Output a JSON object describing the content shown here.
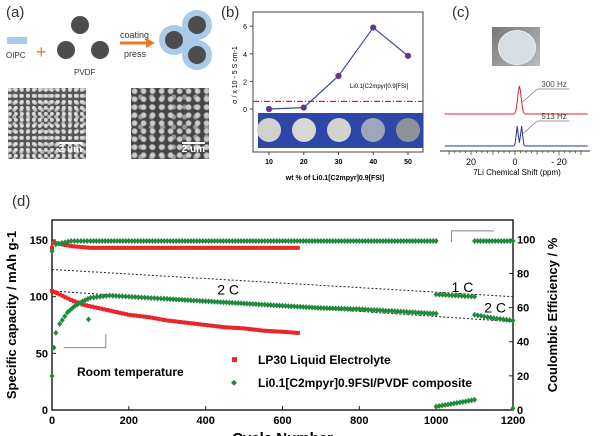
{
  "panel_a": {
    "label": "(a)",
    "oipc_label": "OIPC",
    "pvdf_label": "PVDF",
    "arrow_top": "coating",
    "arrow_bottom": "press",
    "scale_left": "2 um",
    "scale_right": "2 um",
    "colors": {
      "oipc": "#a9cbe9",
      "pvdf": "#4d4d4d",
      "plus": "#e97a2b",
      "arrow": "#e97a2b"
    }
  },
  "chart_data": [
    {
      "panel": "(b)",
      "type": "line",
      "xlabel": "wt % of Li0.1[C2mpyr]0.9[FSI]",
      "ylabel": "σ / x 10 - 5 S cm-1",
      "x": [
        10,
        20,
        30,
        40,
        50
      ],
      "y": [
        0.0,
        0.1,
        2.4,
        5.9,
        3.85
      ],
      "x_ticks": [
        "10",
        "20",
        "30",
        "40",
        "50"
      ],
      "y_ticks": [
        "0",
        "2",
        "4",
        "6"
      ],
      "xlim": [
        5,
        55
      ],
      "ylim": [
        -3,
        7
      ],
      "reference_line": {
        "label": "Li0.1[C2mpyr]0.9[FSI]",
        "value": 0.55,
        "color": "#d9232a"
      },
      "marker_color": "#7a2b86",
      "line_color": "#3a4aa0"
    },
    {
      "panel": "(c)",
      "type": "line",
      "xlabel": "7Li Chemical Shift (ppm)",
      "x_ticks": [
        "20",
        "0",
        "- 20"
      ],
      "xlim": [
        32,
        -33
      ],
      "series": [
        {
          "annotation": "300 Hz",
          "color": "#d9232a",
          "peak_ppm": -2
        },
        {
          "annotation": "513 Hz",
          "color": "#26348c",
          "peak_ppm": -2
        }
      ]
    },
    {
      "panel": "(d)",
      "type": "scatter",
      "xlabel": "Cycle Number",
      "ylabel": "Specific capacity / mAh g-1",
      "y2label": "Coulombic Efficiency / %",
      "xlim": [
        0,
        1200
      ],
      "ylim": [
        0,
        160
      ],
      "y2lim": [
        0,
        107
      ],
      "x_ticks": [
        "0",
        "200",
        "400",
        "600",
        "800",
        "1000",
        "1200"
      ],
      "y_ticks": [
        "0",
        "50",
        "100",
        "150"
      ],
      "y2_ticks": [
        "0",
        "20",
        "40",
        "60",
        "80",
        "100"
      ],
      "annotations": [
        "Room temperature",
        "2 C",
        "1 C",
        "2 C"
      ],
      "series": [
        {
          "name": "LP30 Liquid Electrolyte",
          "axis": "left",
          "color": "#e8262b",
          "marker": "square",
          "points": [
            [
              0,
              105
            ],
            [
              20,
              102
            ],
            [
              50,
              97
            ],
            [
              80,
              93
            ],
            [
              120,
              90
            ],
            [
              160,
              87
            ],
            [
              200,
              84
            ],
            [
              250,
              82
            ],
            [
              300,
              79
            ],
            [
              350,
              77
            ],
            [
              400,
              75
            ],
            [
              450,
              73
            ],
            [
              500,
              72
            ],
            [
              550,
              70
            ],
            [
              600,
              69
            ],
            [
              640,
              68
            ]
          ]
        },
        {
          "name": "LP30 Liquid Electrolyte CE",
          "axis": "right",
          "color": "#e8262b",
          "marker": "square",
          "points": [
            [
              0,
              95
            ],
            [
              5,
              98
            ],
            [
              50,
              96
            ],
            [
              100,
              95
            ],
            [
              200,
              95
            ],
            [
              300,
              95
            ],
            [
              400,
              95
            ],
            [
              500,
              95
            ],
            [
              600,
              95
            ],
            [
              640,
              95
            ]
          ]
        },
        {
          "name": "Li0.1[C2mpyr]0.9FSI/PVDF composite",
          "axis": "left",
          "color": "#1f8a3a",
          "marker": "diamond",
          "points": [
            [
              0,
              30
            ],
            [
              5,
              55
            ],
            [
              10,
              68
            ],
            [
              20,
              76
            ],
            [
              40,
              86
            ],
            [
              60,
              92
            ],
            [
              80,
              96
            ],
            [
              100,
              99
            ],
            [
              150,
              101
            ],
            [
              200,
              100
            ],
            [
              250,
              99
            ],
            [
              300,
              98
            ],
            [
              400,
              96
            ],
            [
              500,
              94
            ],
            [
              600,
              92
            ],
            [
              700,
              90
            ],
            [
              800,
              89
            ],
            [
              900,
              87
            ],
            [
              1000,
              85
            ],
            [
              1000,
              102
            ],
            [
              1050,
              101
            ],
            [
              1100,
              100
            ],
            [
              1100,
              84
            ],
            [
              1150,
              81
            ],
            [
              1200,
              79
            ]
          ]
        },
        {
          "name": "composite outliers",
          "axis": "left",
          "color": "#1f8a3a",
          "marker": "diamond",
          "points": [
            [
              95,
              80
            ]
          ]
        },
        {
          "name": "Li0.1[C2mpyr]0.9FSI/PVDF composite CE",
          "axis": "right",
          "color": "#1f8a3a",
          "marker": "diamond",
          "points": [
            [
              0,
              93
            ],
            [
              10,
              97
            ],
            [
              50,
              99
            ],
            [
              100,
              99
            ],
            [
              200,
              99
            ],
            [
              300,
              99
            ],
            [
              400,
              99
            ],
            [
              500,
              99
            ],
            [
              600,
              99
            ],
            [
              700,
              99
            ],
            [
              800,
              99
            ],
            [
              900,
              99
            ],
            [
              1000,
              99
            ],
            [
              1000,
              2
            ],
            [
              1100,
              6
            ],
            [
              1100,
              99
            ],
            [
              1200,
              99
            ],
            [
              1200,
              1
            ]
          ]
        }
      ],
      "trend_lines": [
        [
          [
            0,
            124
          ],
          [
            1200,
            100
          ]
        ],
        [
          [
            0,
            105
          ],
          [
            1200,
            78
          ]
        ]
      ]
    }
  ],
  "panel_b": {
    "label": "(b)"
  },
  "panel_c": {
    "label": "(c)"
  },
  "panel_d": {
    "label": "(d)",
    "legend": [
      "LP30 Liquid Electrolyte",
      "Li0.1[C2mpyr]0.9FSI/PVDF composite"
    ]
  }
}
